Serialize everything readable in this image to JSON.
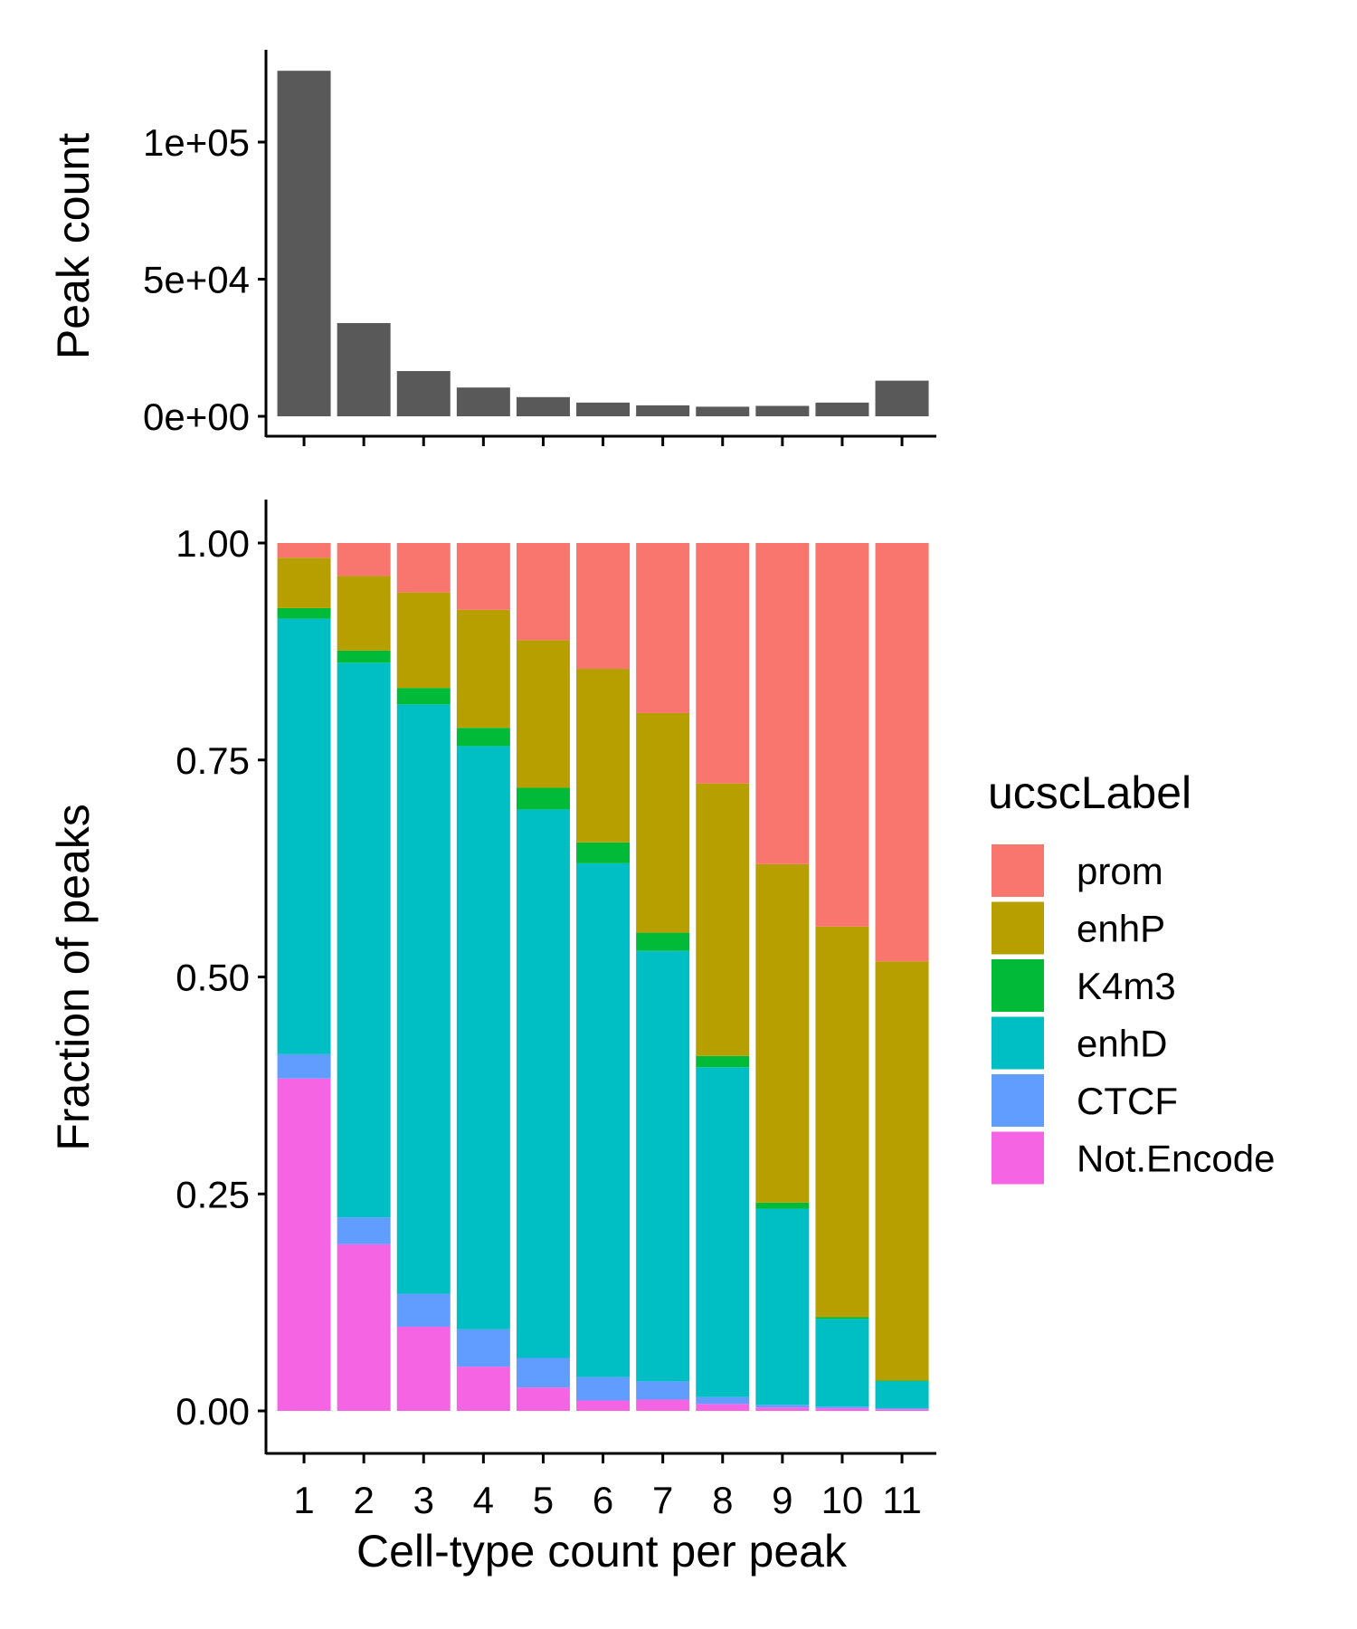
{
  "chart_data": [
    {
      "type": "bar",
      "title": "",
      "xlabel": "",
      "ylabel": "Peak count",
      "categories": [
        "1",
        "2",
        "3",
        "4",
        "5",
        "6",
        "7",
        "8",
        "9",
        "10",
        "11"
      ],
      "values": [
        126000,
        34000,
        16500,
        10500,
        7000,
        5000,
        4000,
        3500,
        3800,
        5000,
        13000
      ],
      "ylim": [
        0,
        130000
      ],
      "yticks": [
        0,
        50000,
        100000
      ],
      "ytick_labels": [
        "0e+00",
        "5e+04",
        "1e+05"
      ],
      "bar_color": "#595959",
      "grid": false
    },
    {
      "type": "bar",
      "stacked": true,
      "title": "",
      "xlabel": "Cell-type count per peak",
      "ylabel": "Fraction of peaks",
      "categories": [
        "1",
        "2",
        "3",
        "4",
        "5",
        "6",
        "7",
        "8",
        "9",
        "10",
        "11"
      ],
      "ylim": [
        0,
        1.05
      ],
      "yticks": [
        0,
        0.25,
        0.5,
        0.75,
        1.0
      ],
      "ytick_labels": [
        "0.00",
        "0.25",
        "0.50",
        "0.75",
        "1.00"
      ],
      "grid": false,
      "legend": {
        "title": "ucscLabel",
        "position": "right",
        "order": [
          "prom",
          "enhP",
          "K4m3",
          "enhD",
          "CTCF",
          "Not.Encode"
        ]
      },
      "series": [
        {
          "name": "Not.Encode",
          "color": "#F564E3",
          "values": [
            0.383,
            0.192,
            0.097,
            0.051,
            0.027,
            0.012,
            0.013,
            0.008,
            0.004,
            0.003,
            0.002
          ]
        },
        {
          "name": "CTCF",
          "color": "#619CFF",
          "values": [
            0.028,
            0.031,
            0.038,
            0.043,
            0.034,
            0.027,
            0.021,
            0.008,
            0.003,
            0.002,
            0.001
          ]
        },
        {
          "name": "enhD",
          "color": "#00BFC4",
          "values": [
            0.502,
            0.639,
            0.679,
            0.672,
            0.632,
            0.592,
            0.496,
            0.38,
            0.226,
            0.101,
            0.031
          ]
        },
        {
          "name": "K4m3",
          "color": "#00BA38",
          "values": [
            0.012,
            0.014,
            0.019,
            0.021,
            0.025,
            0.024,
            0.021,
            0.013,
            0.007,
            0.002,
            0.001
          ]
        },
        {
          "name": "enhP",
          "color": "#B79F00",
          "values": [
            0.058,
            0.086,
            0.11,
            0.136,
            0.17,
            0.2,
            0.253,
            0.314,
            0.39,
            0.45,
            0.483
          ]
        },
        {
          "name": "prom",
          "color": "#F8766D",
          "values": [
            0.017,
            0.038,
            0.057,
            0.077,
            0.112,
            0.145,
            0.196,
            0.277,
            0.37,
            0.442,
            0.482
          ]
        }
      ]
    }
  ]
}
